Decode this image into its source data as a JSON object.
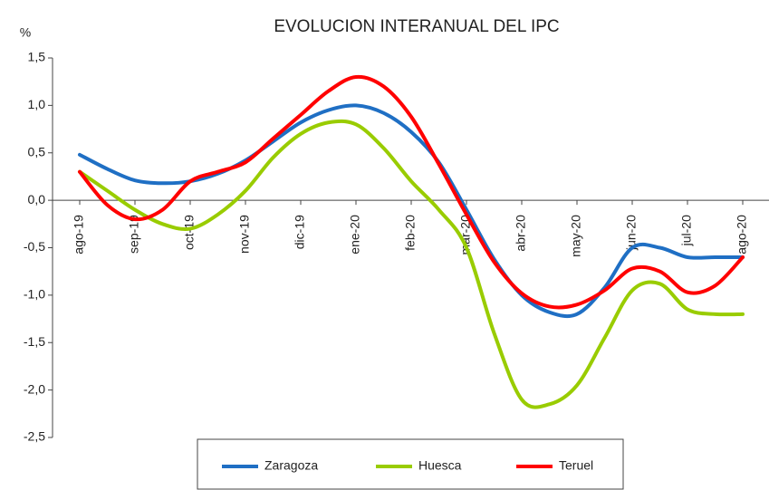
{
  "chart_data": {
    "type": "line",
    "title": "EVOLUCION INTERANUAL DEL IPC",
    "y_label": "%",
    "categories": [
      "ago-19",
      null,
      "sep-19",
      null,
      "oct-19",
      null,
      "nov-19",
      null,
      "dic-19",
      null,
      "ene-20",
      null,
      "feb-20",
      null,
      "mar-20",
      null,
      "abr-20",
      null,
      "may-20",
      null,
      "jun-20",
      null,
      "jul-20",
      null,
      "ago-20"
    ],
    "series": [
      {
        "name": "Zaragoza",
        "color": "#1f6fc4",
        "values": [
          0.48,
          0.33,
          0.21,
          0.18,
          0.2,
          0.28,
          0.42,
          0.62,
          0.82,
          0.95,
          1.0,
          0.92,
          0.72,
          0.4,
          -0.1,
          -0.62,
          -1.0,
          -1.18,
          -1.2,
          -0.92,
          -0.5,
          -0.5,
          -0.6,
          -0.6,
          -0.6
        ]
      },
      {
        "name": "Huesca",
        "color": "#99cc00",
        "values": [
          0.3,
          0.1,
          -0.1,
          -0.25,
          -0.3,
          -0.15,
          0.1,
          0.45,
          0.7,
          0.82,
          0.8,
          0.55,
          0.2,
          -0.1,
          -0.5,
          -1.4,
          -2.1,
          -2.15,
          -1.95,
          -1.45,
          -0.95,
          -0.88,
          -1.15,
          -1.2,
          -1.2
        ]
      },
      {
        "name": "Teruel",
        "color": "#ff0000",
        "values": [
          0.3,
          -0.05,
          -0.2,
          -0.1,
          0.2,
          0.3,
          0.4,
          0.65,
          0.9,
          1.15,
          1.3,
          1.2,
          0.88,
          0.38,
          -0.15,
          -0.65,
          -0.98,
          -1.12,
          -1.1,
          -0.95,
          -0.72,
          -0.75,
          -0.97,
          -0.9,
          -0.6
        ]
      }
    ],
    "ylim": [
      -2.5,
      1.5
    ],
    "yticks": [
      {
        "value": -2.5,
        "label": "-2,5"
      },
      {
        "value": -2.0,
        "label": "-2,0"
      },
      {
        "value": -1.5,
        "label": "-1,5"
      },
      {
        "value": -1.0,
        "label": "-1,0"
      },
      {
        "value": -0.5,
        "label": "-0,5"
      },
      {
        "value": 0,
        "label": "0,0"
      },
      {
        "value": 0.5,
        "label": "0,5"
      },
      {
        "value": 1.0,
        "label": "1,0"
      },
      {
        "value": 1.5,
        "label": "1,5"
      }
    ],
    "grid": false,
    "legend": "bottom"
  }
}
